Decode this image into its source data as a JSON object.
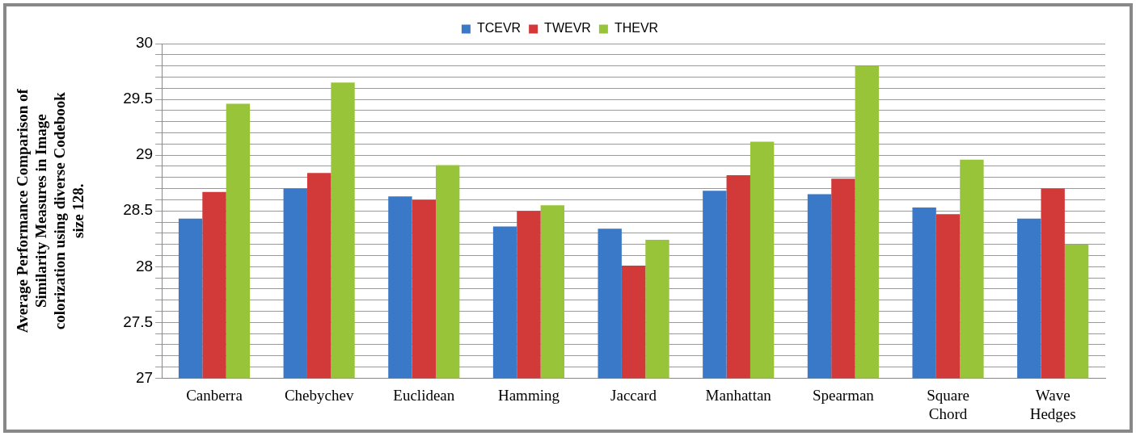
{
  "chart_data": {
    "type": "bar",
    "ylabel": "Average Performance Comparison of Similarity Measures in Image colorization using diverse Codebook size 128.",
    "categories": [
      "Canberra",
      "Chebychev",
      "Euclidean",
      "Hamming",
      "Jaccard",
      "Manhattan",
      "Spearman",
      "Square Chord",
      "Wave Hedges"
    ],
    "series": [
      {
        "name": "TCEVR",
        "color": "#3a78c8",
        "values": [
          28.43,
          28.7,
          28.63,
          28.36,
          28.34,
          28.68,
          28.65,
          28.53,
          28.43
        ]
      },
      {
        "name": "TWEVR",
        "color": "#d23a3a",
        "values": [
          28.67,
          28.84,
          28.6,
          28.5,
          28.01,
          28.82,
          28.79,
          28.47,
          28.7
        ]
      },
      {
        "name": "THEVR",
        "color": "#98c43a",
        "values": [
          29.46,
          29.65,
          28.91,
          28.55,
          28.24,
          29.12,
          29.8,
          28.96,
          28.2
        ]
      }
    ],
    "ylim": [
      27,
      30
    ],
    "yticks": [
      27,
      {
        "value": 27.1,
        "label": null
      },
      {
        "value": 27.2,
        "label": null
      },
      {
        "value": 27.3,
        "label": null
      },
      {
        "value": 27.4,
        "label": null
      },
      27.5,
      {
        "value": 27.6,
        "label": null
      },
      {
        "value": 27.7,
        "label": null
      },
      {
        "value": 27.8,
        "label": null
      },
      {
        "value": 27.9,
        "label": null
      },
      28,
      {
        "value": 28.1,
        "label": null
      },
      {
        "value": 28.2,
        "label": null
      },
      {
        "value": 28.3,
        "label": null
      },
      {
        "value": 28.4,
        "label": null
      },
      28.5,
      {
        "value": 28.6,
        "label": null
      },
      {
        "value": 28.7,
        "label": null
      },
      {
        "value": 28.8,
        "label": null
      },
      {
        "value": 28.9,
        "label": null
      },
      29,
      {
        "value": 29.1,
        "label": null
      },
      {
        "value": 29.2,
        "label": null
      },
      {
        "value": 29.3,
        "label": null
      },
      {
        "value": 29.4,
        "label": null
      },
      29.5,
      {
        "value": 29.6,
        "label": null
      },
      {
        "value": 29.7,
        "label": null
      },
      {
        "value": 29.8,
        "label": null
      },
      {
        "value": 29.9,
        "label": null
      },
      30
    ],
    "grid": "y",
    "legend": "top"
  }
}
